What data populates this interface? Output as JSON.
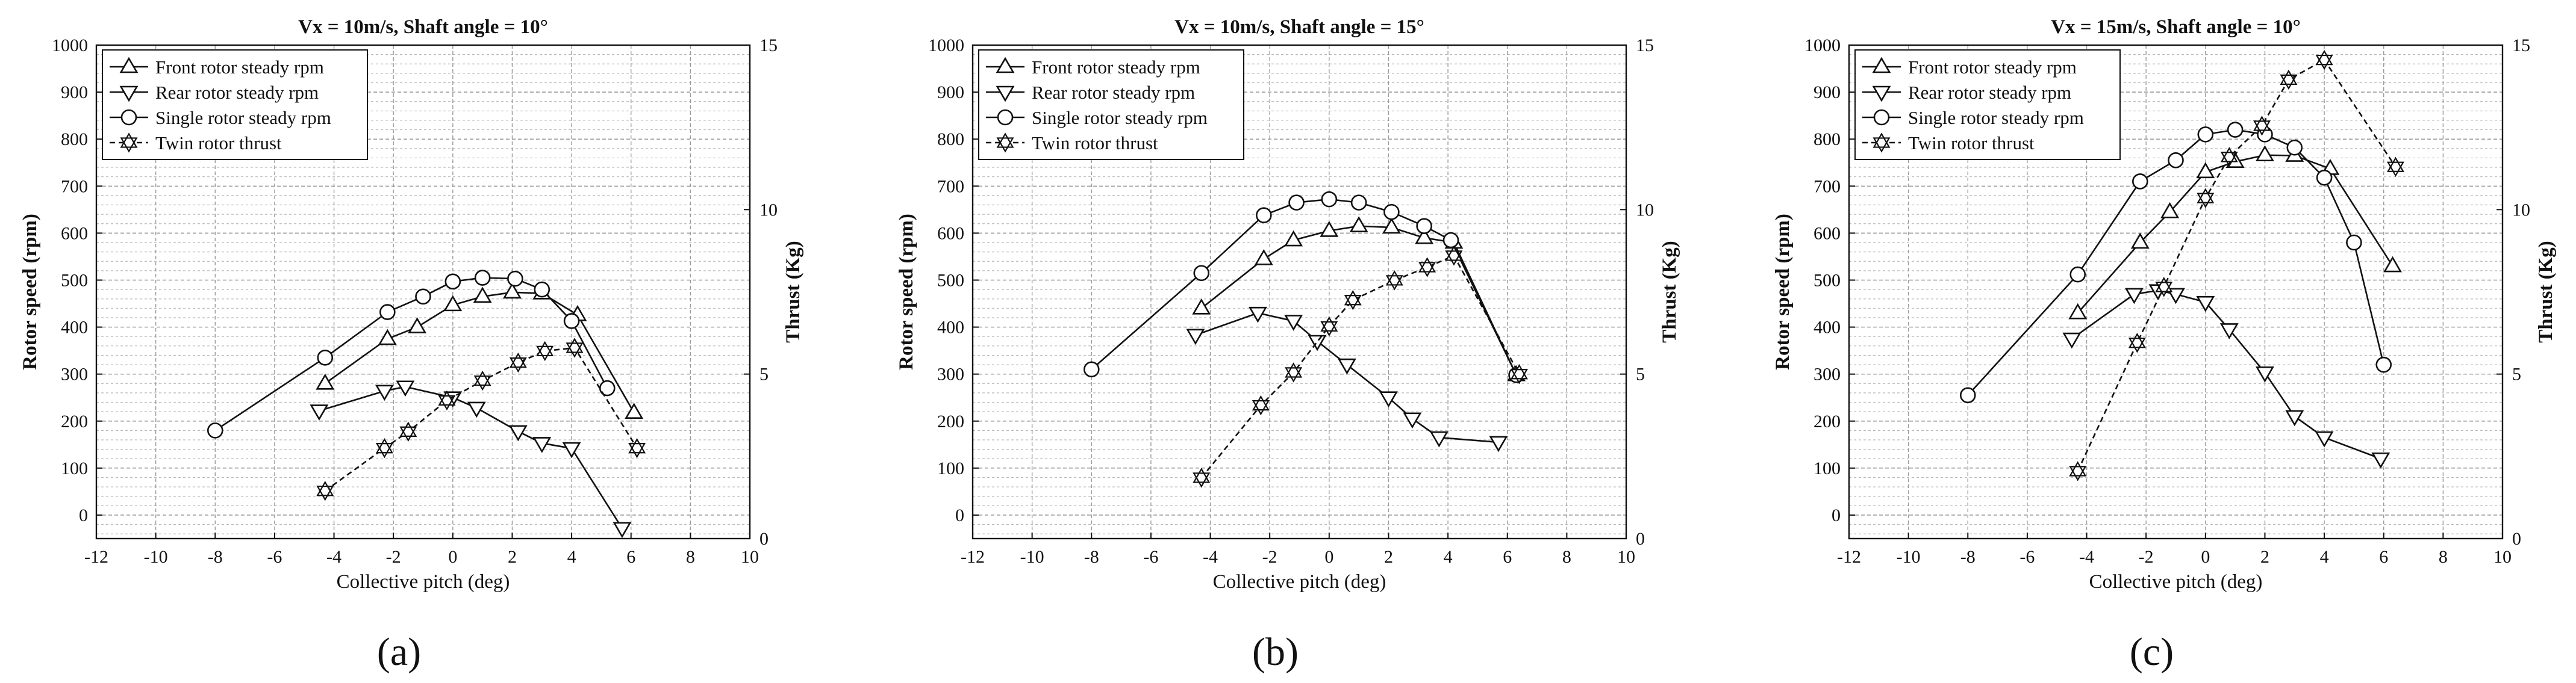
{
  "chart_data": [
    {
      "type": "line",
      "panel_label": "(a)",
      "title": "Vx = 10m/s, Shaft angle = 10°",
      "xlabel": "Collective pitch (deg)",
      "ylabel": "Rotor speed (rpm)",
      "y2label": "Thrust (Kg)",
      "xlim": [
        -12,
        10
      ],
      "ylim": [
        -50,
        1000
      ],
      "y2lim": [
        0,
        15
      ],
      "xticks": [
        "-12",
        "-10",
        "-8",
        "-6",
        "-4",
        "-2",
        "0",
        "2",
        "4",
        "6",
        "8",
        "10"
      ],
      "yticks": [
        "0",
        "100",
        "200",
        "300",
        "400",
        "500",
        "600",
        "700",
        "800",
        "900",
        "1000"
      ],
      "y2ticks": [
        "0",
        "5",
        "10",
        "15"
      ],
      "legend": {
        "position": "top-left"
      },
      "series": [
        {
          "name": "Front rotor steady rpm",
          "marker": "triangle-up",
          "axis": "left",
          "points": [
            [
              -4.3,
              280
            ],
            [
              -2.2,
              375
            ],
            [
              -1.2,
              400
            ],
            [
              0,
              447
            ],
            [
              1,
              465
            ],
            [
              2,
              474
            ],
            [
              3,
              472
            ],
            [
              4.2,
              426
            ],
            [
              6.1,
              218
            ]
          ]
        },
        {
          "name": "Rear rotor steady rpm",
          "marker": "triangle-down",
          "axis": "left",
          "points": [
            [
              -4.5,
              222
            ],
            [
              -2.3,
              264
            ],
            [
              -1.6,
              273
            ],
            [
              0,
              250
            ],
            [
              0.8,
              228
            ],
            [
              2.2,
              178
            ],
            [
              3,
              153
            ],
            [
              4,
              142
            ],
            [
              5.7,
              -28
            ]
          ]
        },
        {
          "name": "Single rotor steady rpm",
          "marker": "circle",
          "axis": "left",
          "points": [
            [
              -8,
              180
            ],
            [
              -4.3,
              335
            ],
            [
              -2.2,
              432
            ],
            [
              -1,
              465
            ],
            [
              0,
              497
            ],
            [
              1,
              505
            ],
            [
              2.1,
              503
            ],
            [
              3,
              480
            ],
            [
              4,
              413
            ],
            [
              5.2,
              270
            ]
          ]
        },
        {
          "name": "Twin rotor thrust",
          "marker": "star",
          "axis": "right",
          "points": [
            [
              -4.3,
              1.45
            ],
            [
              -2.3,
              2.75
            ],
            [
              -1.5,
              3.25
            ],
            [
              -0.2,
              4.2
            ],
            [
              1,
              4.8
            ],
            [
              2.2,
              5.35
            ],
            [
              3.1,
              5.7
            ],
            [
              4.1,
              5.8
            ],
            [
              6.2,
              2.75
            ]
          ]
        }
      ]
    },
    {
      "type": "line",
      "panel_label": "(b)",
      "title": "Vx = 10m/s, Shaft angle = 15°",
      "xlabel": "Collective pitch (deg)",
      "ylabel": "Rotor speed (rpm)",
      "y2label": "Thrust (Kg)",
      "xlim": [
        -12,
        10
      ],
      "ylim": [
        -50,
        1000
      ],
      "y2lim": [
        0,
        15
      ],
      "xticks": [
        "-12",
        "-10",
        "-8",
        "-6",
        "-4",
        "-2",
        "0",
        "2",
        "4",
        "6",
        "8",
        "10"
      ],
      "yticks": [
        "0",
        "100",
        "200",
        "300",
        "400",
        "500",
        "600",
        "700",
        "800",
        "900",
        "1000"
      ],
      "y2ticks": [
        "0",
        "5",
        "10",
        "15"
      ],
      "legend": {
        "position": "top-left"
      },
      "series": [
        {
          "name": "Front rotor steady rpm",
          "marker": "triangle-up",
          "axis": "left",
          "points": [
            [
              -4.3,
              440
            ],
            [
              -2.2,
              545
            ],
            [
              -1.2,
              585
            ],
            [
              0,
              605
            ],
            [
              1,
              615
            ],
            [
              2.1,
              612
            ],
            [
              3.2,
              590
            ],
            [
              4.2,
              580
            ],
            [
              6.3,
              298
            ]
          ]
        },
        {
          "name": "Rear rotor steady rpm",
          "marker": "triangle-down",
          "axis": "left",
          "points": [
            [
              -4.5,
              383
            ],
            [
              -2.4,
              430
            ],
            [
              -1.2,
              413
            ],
            [
              -0.4,
              370
            ],
            [
              0.6,
              320
            ],
            [
              2,
              250
            ],
            [
              2.8,
              205
            ],
            [
              3.7,
              165
            ],
            [
              5.7,
              155
            ]
          ]
        },
        {
          "name": "Single rotor steady rpm",
          "marker": "circle",
          "axis": "left",
          "points": [
            [
              -8,
              310
            ],
            [
              -4.3,
              515
            ],
            [
              -2.2,
              638
            ],
            [
              -1.1,
              665
            ],
            [
              0,
              672
            ],
            [
              1,
              665
            ],
            [
              2.1,
              645
            ],
            [
              3.2,
              615
            ],
            [
              4.1,
              585
            ],
            [
              6.3,
              298
            ]
          ]
        },
        {
          "name": "Twin rotor thrust",
          "marker": "star",
          "axis": "right",
          "points": [
            [
              -4.3,
              1.85
            ],
            [
              -2.3,
              4.05
            ],
            [
              -1.2,
              5.05
            ],
            [
              0,
              6.45
            ],
            [
              0.8,
              7.25
            ],
            [
              2.2,
              7.85
            ],
            [
              3.3,
              8.25
            ],
            [
              4.2,
              8.6
            ],
            [
              6.4,
              5.0
            ]
          ]
        }
      ]
    },
    {
      "type": "line",
      "panel_label": "(c)",
      "title": "Vx = 15m/s, Shaft angle = 10°",
      "xlabel": "Collective pitch (deg)",
      "ylabel": "Rotor speed (rpm)",
      "y2label": "Thrust (Kg)",
      "xlim": [
        -12,
        10
      ],
      "ylim": [
        -50,
        1000
      ],
      "y2lim": [
        0,
        15
      ],
      "xticks": [
        "-12",
        "-10",
        "-8",
        "-6",
        "-4",
        "-2",
        "0",
        "2",
        "4",
        "6",
        "8",
        "10"
      ],
      "yticks": [
        "0",
        "100",
        "200",
        "300",
        "400",
        "500",
        "600",
        "700",
        "800",
        "900",
        "1000"
      ],
      "y2ticks": [
        "0",
        "5",
        "10",
        "15"
      ],
      "legend": {
        "position": "top-left"
      },
      "series": [
        {
          "name": "Front rotor steady rpm",
          "marker": "triangle-up",
          "axis": "left",
          "points": [
            [
              -4.3,
              430
            ],
            [
              -2.2,
              580
            ],
            [
              -1.2,
              645
            ],
            [
              0,
              730
            ],
            [
              1,
              752
            ],
            [
              2,
              766
            ],
            [
              3,
              765
            ],
            [
              4.2,
              737
            ],
            [
              6.3,
              530
            ]
          ]
        },
        {
          "name": "Rear rotor steady rpm",
          "marker": "triangle-down",
          "axis": "left",
          "points": [
            [
              -4.5,
              375
            ],
            [
              -2.4,
              470
            ],
            [
              -1.6,
              478
            ],
            [
              -1,
              470
            ],
            [
              0,
              453
            ],
            [
              0.8,
              395
            ],
            [
              2,
              303
            ],
            [
              3,
              210
            ],
            [
              4,
              165
            ],
            [
              5.9,
              120
            ]
          ]
        },
        {
          "name": "Single rotor steady rpm",
          "marker": "circle",
          "axis": "left",
          "points": [
            [
              -8,
              255
            ],
            [
              -4.3,
              512
            ],
            [
              -2.2,
              710
            ],
            [
              -1,
              755
            ],
            [
              0,
              810
            ],
            [
              1,
              820
            ],
            [
              2,
              810
            ],
            [
              3,
              782
            ],
            [
              4,
              718
            ],
            [
              5,
              580
            ],
            [
              6,
              320
            ]
          ]
        },
        {
          "name": "Twin rotor thrust",
          "marker": "star",
          "axis": "right",
          "points": [
            [
              -4.3,
              2.05
            ],
            [
              -2.3,
              5.95
            ],
            [
              -1.4,
              7.65
            ],
            [
              0,
              10.35
            ],
            [
              0.8,
              11.6
            ],
            [
              1.9,
              12.55
            ],
            [
              2.8,
              13.95
            ],
            [
              4,
              14.55
            ],
            [
              6.4,
              11.3
            ]
          ]
        }
      ]
    }
  ]
}
